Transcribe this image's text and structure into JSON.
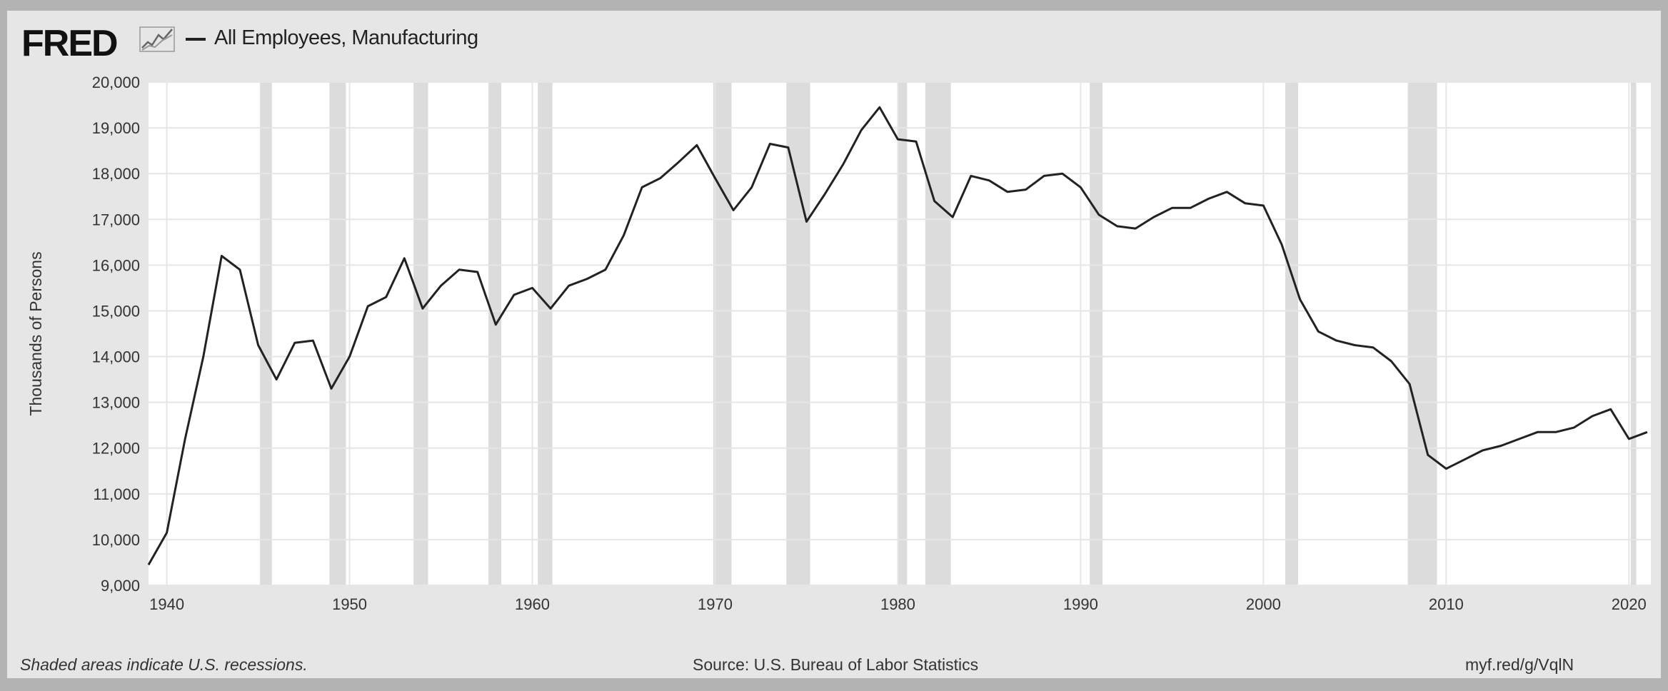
{
  "header": {
    "logo": "FRED",
    "series_label": "All Employees, Manufacturing"
  },
  "footer": {
    "note": "Shaded areas indicate U.S. recessions.",
    "source": "Source: U.S. Bureau of Labor Statistics",
    "url": "myf.red/g/VqlN"
  },
  "colors": {
    "line": "#222222",
    "plot_bg": "#ffffff",
    "recession": "#dcdcdc",
    "grid": "#e6e6e6",
    "frame": "#e6e6e6"
  },
  "chart_data": {
    "type": "line",
    "title": "All Employees, Manufacturing",
    "xlabel": "",
    "ylabel": "Thousands of Persons",
    "xlim": [
      1939,
      2021.2
    ],
    "ylim": [
      9000,
      20000
    ],
    "x_ticks": [
      1940,
      1950,
      1960,
      1970,
      1980,
      1990,
      2000,
      2010,
      2020
    ],
    "y_ticks": [
      9000,
      10000,
      11000,
      12000,
      13000,
      14000,
      15000,
      16000,
      17000,
      18000,
      19000,
      20000
    ],
    "y_tick_labels": [
      "9,000",
      "10,000",
      "11,000",
      "12,000",
      "13,000",
      "14,000",
      "15,000",
      "16,000",
      "17,000",
      "18,000",
      "19,000",
      "20,000"
    ],
    "grid": true,
    "recessions": [
      [
        1945.1,
        1945.75
      ],
      [
        1948.9,
        1949.8
      ],
      [
        1953.5,
        1954.3
      ],
      [
        1957.6,
        1958.3
      ],
      [
        1960.3,
        1961.1
      ],
      [
        1969.9,
        1970.9
      ],
      [
        1973.9,
        1975.2
      ],
      [
        1980.0,
        1980.5
      ],
      [
        1981.5,
        1982.9
      ],
      [
        1990.5,
        1991.2
      ],
      [
        2001.2,
        2001.9
      ],
      [
        2007.9,
        2009.5
      ],
      [
        2020.1,
        2020.4
      ]
    ],
    "series": [
      {
        "name": "All Employees, Manufacturing",
        "x": [
          1939,
          1940,
          1941,
          1942,
          1943,
          1944,
          1945,
          1946,
          1947,
          1948,
          1949,
          1950,
          1951,
          1952,
          1953,
          1954,
          1955,
          1956,
          1957,
          1958,
          1959,
          1960,
          1961,
          1962,
          1963,
          1964,
          1965,
          1966,
          1967,
          1968,
          1969,
          1970,
          1971,
          1972,
          1973,
          1974,
          1975,
          1976,
          1977,
          1978,
          1979,
          1980,
          1981,
          1982,
          1983,
          1984,
          1985,
          1986,
          1987,
          1988,
          1989,
          1990,
          1991,
          1992,
          1993,
          1994,
          1995,
          1996,
          1997,
          1998,
          1999,
          2000,
          2001,
          2002,
          2003,
          2004,
          2005,
          2006,
          2007,
          2008,
          2009,
          2010,
          2011,
          2012,
          2013,
          2014,
          2015,
          2016,
          2017,
          2018,
          2019,
          2020,
          2021
        ],
        "values": [
          9450,
          10150,
          12200,
          14000,
          16200,
          15900,
          14250,
          13500,
          14300,
          14350,
          13300,
          14000,
          15100,
          15300,
          16150,
          15050,
          15550,
          15900,
          15850,
          14700,
          15350,
          15500,
          15050,
          15550,
          15700,
          15900,
          16650,
          17700,
          17900,
          18250,
          18620,
          17900,
          17200,
          17700,
          18650,
          18570,
          16950,
          17550,
          18200,
          18950,
          19450,
          18750,
          18700,
          17400,
          17050,
          17950,
          17850,
          17600,
          17650,
          17950,
          18000,
          17700,
          17100,
          16850,
          16800,
          17050,
          17250,
          17250,
          17450,
          17600,
          17350,
          17300,
          16450,
          15250,
          14550,
          14350,
          14250,
          14200,
          13900,
          13400,
          11850,
          11550,
          11750,
          11950,
          12050,
          12200,
          12350,
          12350,
          12450,
          12700,
          12850,
          12200,
          12350
        ]
      }
    ]
  }
}
